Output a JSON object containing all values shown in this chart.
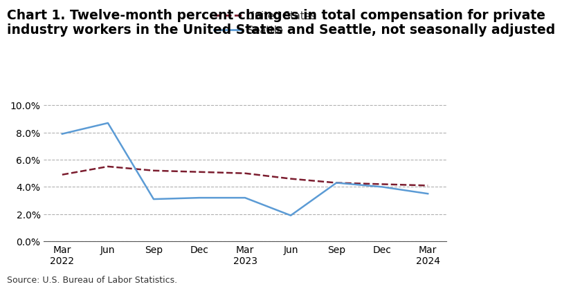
{
  "title_line1": "Chart 1. Twelve-month percent changes in total compensation for private",
  "title_line2": "industry workers in the United States and Seattle, not seasonally adjusted",
  "x_labels": [
    "Mar\n2022",
    "Jun",
    "Sep",
    "Dec",
    "Mar\n2023",
    "Jun",
    "Sep",
    "Dec",
    "Mar\n2024"
  ],
  "us_values": [
    4.9,
    5.5,
    5.2,
    5.1,
    5.0,
    4.6,
    4.3,
    4.2,
    4.1
  ],
  "seattle_values": [
    7.9,
    8.7,
    3.1,
    3.2,
    3.2,
    1.9,
    4.3,
    4.0,
    3.5
  ],
  "us_color": "#7B1C2E",
  "seattle_color": "#5B9BD5",
  "ylim": [
    0.0,
    10.5
  ],
  "yticks": [
    0.0,
    2.0,
    4.0,
    6.0,
    8.0,
    10.0
  ],
  "ytick_labels": [
    "0.0%",
    "2.0%",
    "4.0%",
    "6.0%",
    "8.0%",
    "10.0%"
  ],
  "us_label": "United States",
  "seattle_label": "Seattle",
  "source_text": "Source: U.S. Bureau of Labor Statistics.",
  "background_color": "#ffffff",
  "grid_color": "#b0b0b0",
  "title_fontsize": 13.5,
  "axis_fontsize": 10,
  "legend_fontsize": 10.5
}
